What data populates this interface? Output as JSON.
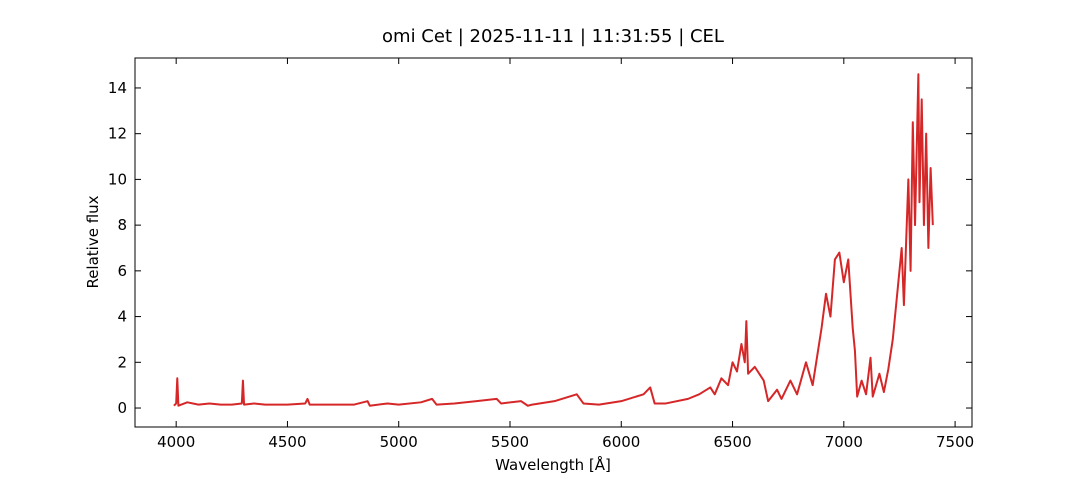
{
  "chart_data": {
    "type": "line",
    "title": "omi Cet | 2025-11-11 | 11:31:55 | CEL",
    "xlabel": "Wavelength [Å]",
    "ylabel": "Relative flux",
    "xlim": [
      3815,
      7576
    ],
    "ylim": [
      -0.83,
      15.31
    ],
    "xticks": [
      4000,
      4500,
      5000,
      5500,
      6000,
      6500,
      7000,
      7500
    ],
    "yticks": [
      0,
      2,
      4,
      6,
      8,
      10,
      12,
      14
    ],
    "grid": false,
    "series": [
      {
        "color": "#d62728",
        "x": [
          3990,
          4000,
          4005,
          4010,
          4050,
          4100,
          4150,
          4200,
          4250,
          4295,
          4300,
          4305,
          4350,
          4400,
          4500,
          4580,
          4590,
          4600,
          4700,
          4800,
          4860,
          4870,
          4950,
          5000,
          5100,
          5150,
          5170,
          5250,
          5350,
          5440,
          5460,
          5550,
          5580,
          5600,
          5700,
          5800,
          5830,
          5900,
          6000,
          6100,
          6130,
          6150,
          6200,
          6300,
          6350,
          6400,
          6420,
          6450,
          6480,
          6500,
          6520,
          6540,
          6555,
          6562,
          6570,
          6600,
          6640,
          6660,
          6700,
          6720,
          6760,
          6790,
          6830,
          6860,
          6900,
          6920,
          6940,
          6960,
          6980,
          7000,
          7020,
          7040,
          7050,
          7060,
          7080,
          7100,
          7120,
          7130,
          7160,
          7180,
          7200,
          7220,
          7240,
          7260,
          7270,
          7290,
          7300,
          7310,
          7320,
          7335,
          7340,
          7350,
          7360,
          7370,
          7380,
          7390,
          7400
        ],
        "values": [
          0.1,
          0.2,
          1.3,
          0.1,
          0.25,
          0.15,
          0.2,
          0.15,
          0.15,
          0.2,
          1.2,
          0.15,
          0.2,
          0.15,
          0.15,
          0.2,
          0.4,
          0.15,
          0.15,
          0.15,
          0.3,
          0.1,
          0.2,
          0.15,
          0.25,
          0.4,
          0.15,
          0.2,
          0.3,
          0.4,
          0.2,
          0.3,
          0.1,
          0.15,
          0.3,
          0.6,
          0.2,
          0.15,
          0.3,
          0.6,
          0.9,
          0.2,
          0.2,
          0.4,
          0.6,
          0.9,
          0.6,
          1.3,
          1.0,
          2.0,
          1.6,
          2.8,
          2.0,
          3.8,
          1.5,
          1.8,
          1.2,
          0.3,
          0.8,
          0.4,
          1.2,
          0.6,
          2.0,
          1.0,
          3.5,
          5.0,
          4.0,
          6.5,
          6.8,
          5.5,
          6.5,
          3.5,
          2.5,
          0.5,
          1.2,
          0.6,
          2.2,
          0.5,
          1.5,
          0.7,
          1.7,
          3.0,
          5.0,
          7.0,
          4.5,
          10.0,
          6.0,
          12.5,
          8.0,
          14.6,
          9.0,
          13.5,
          8.0,
          12.0,
          7.0,
          10.5,
          8.0
        ]
      }
    ]
  }
}
